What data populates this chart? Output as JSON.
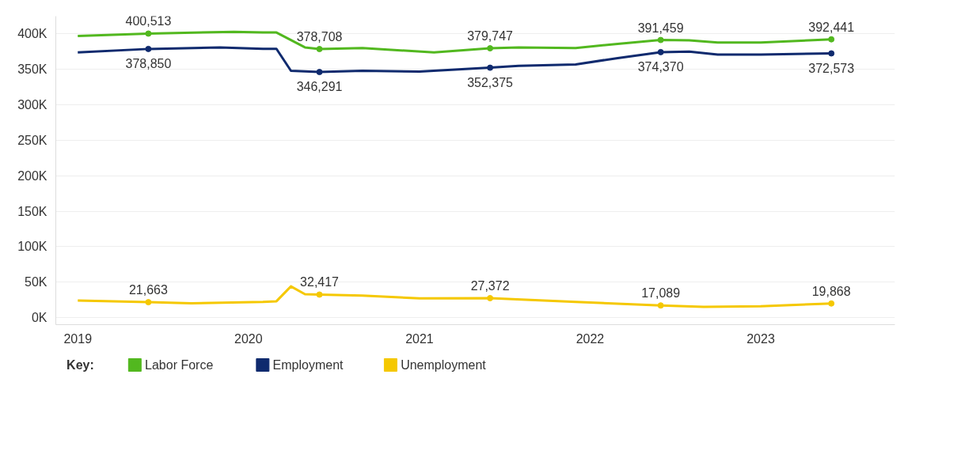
{
  "chart_data": {
    "type": "line",
    "legend_title": "Key:",
    "legend": "bottom left",
    "grid": "y",
    "line_style": "solid",
    "xlim": [
      "2018-11-15",
      "2023-10-15"
    ],
    "xticks": [
      {
        "value": "2019-01",
        "label": "2019"
      },
      {
        "value": "2020-01",
        "label": "2020"
      },
      {
        "value": "2021-01",
        "label": "2021"
      },
      {
        "value": "2022-01",
        "label": "2022"
      },
      {
        "value": "2023-01",
        "label": "2023"
      }
    ],
    "ylim": [
      -10000,
      425000
    ],
    "yticks": [
      {
        "value": 0,
        "label": "0K"
      },
      {
        "value": 50000,
        "label": "50K"
      },
      {
        "value": 100000,
        "label": "100K"
      },
      {
        "value": 150000,
        "label": "150K"
      },
      {
        "value": 200000,
        "label": "200K"
      },
      {
        "value": 250000,
        "label": "250K"
      },
      {
        "value": 300000,
        "label": "300K"
      },
      {
        "value": 350000,
        "label": "350K"
      },
      {
        "value": 400000,
        "label": "400K"
      }
    ],
    "series": [
      {
        "name": "Labor Force",
        "color": "#52b81f",
        "x": [
          "2019-01",
          "2019-06",
          "2019-12",
          "2020-02",
          "2020-03",
          "2020-05",
          "2020-06",
          "2020-09",
          "2021-02",
          "2021-06",
          "2021-08",
          "2021-12",
          "2022-03",
          "2022-06",
          "2022-08",
          "2022-10",
          "2023-01",
          "2023-06"
        ],
        "values": [
          397000,
          400513,
          403000,
          402000,
          402000,
          381000,
          378708,
          380000,
          374000,
          379747,
          381000,
          380000,
          386000,
          391459,
          391000,
          388000,
          388000,
          392441
        ],
        "value_labels": [
          null,
          "400,513",
          null,
          null,
          null,
          null,
          "378,708",
          null,
          null,
          "379,747",
          null,
          null,
          null,
          "391,459",
          null,
          null,
          null,
          "392,441"
        ]
      },
      {
        "name": "Employment",
        "color": "#0f2a6e",
        "x": [
          "2019-01",
          "2019-06",
          "2019-11",
          "2020-02",
          "2020-03",
          "2020-04",
          "2020-06",
          "2020-09",
          "2021-01",
          "2021-06",
          "2021-08",
          "2021-12",
          "2022-03",
          "2022-06",
          "2022-08",
          "2022-10",
          "2023-01",
          "2023-06"
        ],
        "values": [
          374000,
          378850,
          381000,
          379000,
          379000,
          348000,
          346291,
          348000,
          347000,
          352375,
          355000,
          357000,
          366000,
          374370,
          375000,
          371000,
          371000,
          372573
        ],
        "value_labels": [
          null,
          "378,850",
          null,
          null,
          null,
          null,
          "346,291",
          null,
          null,
          "352,375",
          null,
          null,
          null,
          "374,370",
          null,
          null,
          null,
          "372,573"
        ]
      },
      {
        "name": "Unemployment",
        "color": "#f5c800",
        "x": [
          "2019-01",
          "2019-06",
          "2019-09",
          "2020-02",
          "2020-03",
          "2020-04",
          "2020-05",
          "2020-06",
          "2020-09",
          "2021-01",
          "2021-06",
          "2021-12",
          "2022-06",
          "2022-09",
          "2023-01",
          "2023-06"
        ],
        "values": [
          24000,
          21663,
          20000,
          22000,
          23000,
          44000,
          33000,
          32417,
          31000,
          27000,
          27372,
          22000,
          17089,
          15000,
          16000,
          19868
        ],
        "value_labels": [
          null,
          "21,663",
          null,
          null,
          null,
          null,
          null,
          "32,417",
          null,
          null,
          "27,372",
          null,
          "17,089",
          null,
          null,
          "19,868"
        ]
      }
    ]
  }
}
